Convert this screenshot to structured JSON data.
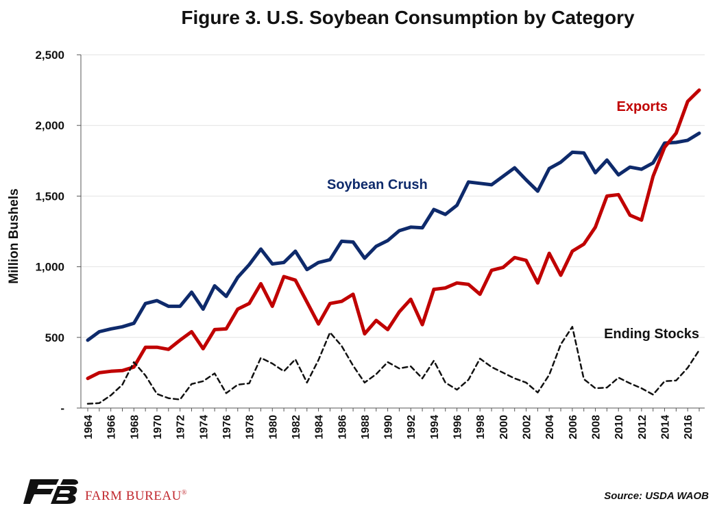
{
  "chart_data": {
    "type": "line",
    "title": "Figure 3. U.S. Soybean Consumption by Category",
    "ylabel": "Million Bushels",
    "xlabel": "",
    "ylim": [
      0,
      2500
    ],
    "yticks": [
      0,
      500,
      1000,
      1500,
      2000,
      2500
    ],
    "ytick_labels": [
      "-",
      "500",
      "1,000",
      "1,500",
      "2,000",
      "2,500"
    ],
    "xtick_labels": [
      "1964",
      "1966",
      "1968",
      "1970",
      "1972",
      "1974",
      "1976",
      "1978",
      "1980",
      "1982",
      "1984",
      "1986",
      "1988",
      "1990",
      "1992",
      "1994",
      "1996",
      "1998",
      "2000",
      "2002",
      "2004",
      "2006",
      "2008",
      "2010",
      "2012",
      "2014",
      "2016"
    ],
    "grid": true,
    "x": [
      1964,
      1965,
      1966,
      1967,
      1968,
      1969,
      1970,
      1971,
      1972,
      1973,
      1974,
      1975,
      1976,
      1977,
      1978,
      1979,
      1980,
      1981,
      1982,
      1983,
      1984,
      1985,
      1986,
      1987,
      1988,
      1989,
      1990,
      1991,
      1992,
      1993,
      1994,
      1995,
      1996,
      1997,
      1998,
      1999,
      2000,
      2001,
      2002,
      2003,
      2004,
      2005,
      2006,
      2007,
      2008,
      2009,
      2010,
      2011,
      2012,
      2013,
      2014,
      2015,
      2016,
      2017
    ],
    "series": [
      {
        "name": "Soybean Crush",
        "color": "#0e2a6b",
        "style": "solid",
        "values": [
          480,
          540,
          560,
          575,
          600,
          740,
          760,
          720,
          720,
          820,
          700,
          865,
          790,
          925,
          1015,
          1125,
          1020,
          1030,
          1110,
          980,
          1030,
          1050,
          1180,
          1175,
          1060,
          1145,
          1185,
          1255,
          1280,
          1275,
          1405,
          1370,
          1435,
          1600,
          1590,
          1580,
          1640,
          1700,
          1615,
          1535,
          1695,
          1740,
          1810,
          1805,
          1665,
          1755,
          1650,
          1705,
          1690,
          1735,
          1875,
          1880,
          1895,
          1945
        ]
      },
      {
        "name": "Exports",
        "color": "#c00000",
        "style": "solid",
        "values": [
          210,
          250,
          260,
          265,
          290,
          430,
          430,
          415,
          480,
          540,
          420,
          555,
          560,
          700,
          740,
          880,
          720,
          930,
          905,
          750,
          595,
          740,
          755,
          805,
          525,
          620,
          555,
          680,
          770,
          590,
          840,
          850,
          885,
          875,
          805,
          975,
          995,
          1065,
          1045,
          885,
          1095,
          940,
          1110,
          1160,
          1280,
          1500,
          1510,
          1365,
          1330,
          1640,
          1845,
          1945,
          2170,
          2250
        ]
      },
      {
        "name": "Ending Stocks",
        "color": "#111111",
        "style": "dashed",
        "values": [
          30,
          35,
          90,
          165,
          325,
          230,
          100,
          70,
          60,
          170,
          190,
          245,
          105,
          165,
          175,
          355,
          315,
          260,
          345,
          180,
          340,
          535,
          440,
          300,
          180,
          240,
          325,
          280,
          295,
          210,
          335,
          180,
          130,
          200,
          350,
          290,
          250,
          210,
          180,
          110,
          235,
          450,
          575,
          205,
          140,
          145,
          215,
          175,
          140,
          95,
          190,
          195,
          285,
          410
        ]
      }
    ],
    "annotations": [
      {
        "text": "Soybean Crush",
        "series": "Soybean Crush"
      },
      {
        "text": "Exports",
        "series": "Exports"
      },
      {
        "text": "Ending Stocks",
        "series": "Ending Stocks"
      }
    ]
  },
  "footer": {
    "source": "Source: USDA WAOB",
    "brand": "FARM BUREAU",
    "brand_mark": "®",
    "logo_icon": "farm-bureau-logo-icon",
    "logo_color": "#111111",
    "brand_color": "#c0272d"
  }
}
